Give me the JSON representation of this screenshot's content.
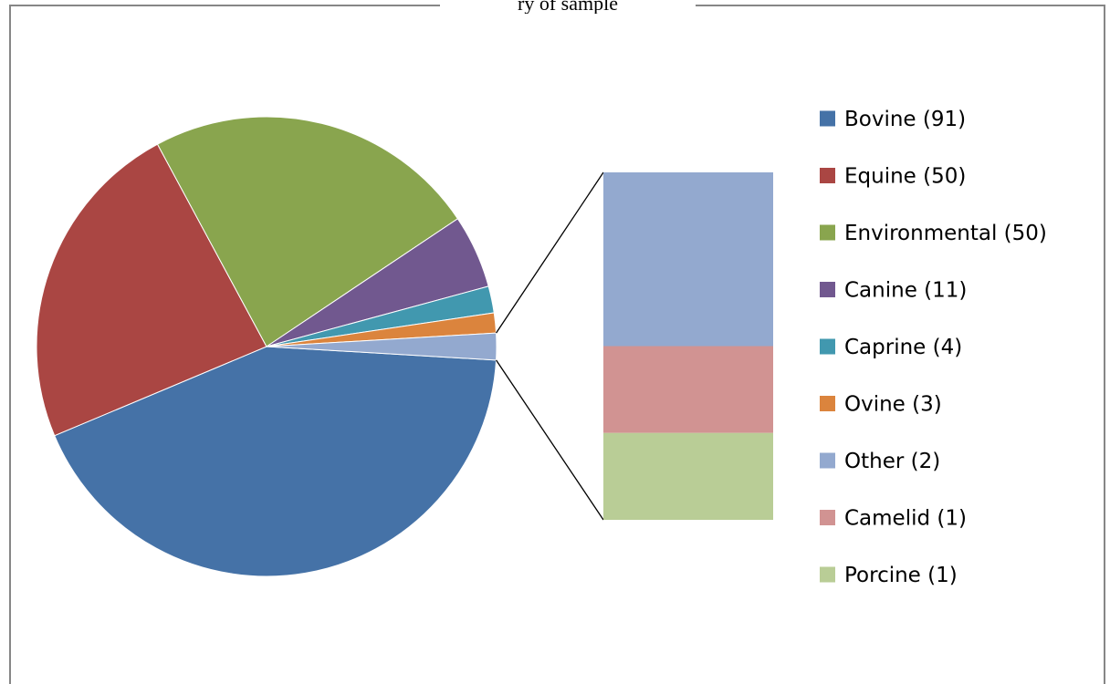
{
  "caption": "ry of sample",
  "chart_data": {
    "type": "pie",
    "subtype": "bar-of-pie",
    "title": "",
    "slices": [
      {
        "label": "Bovine (91)",
        "name": "Bovine",
        "value": 91,
        "color": "#4572A7"
      },
      {
        "label": "Equine (50)",
        "name": "Equine",
        "value": 50,
        "color": "#AA4643"
      },
      {
        "label": "Environmental (50)",
        "name": "Environmental",
        "value": 50,
        "color": "#89A54E"
      },
      {
        "label": "Canine (11)",
        "name": "Canine",
        "value": 11,
        "color": "#71588F"
      },
      {
        "label": "Caprine (4)",
        "name": "Caprine",
        "value": 4,
        "color": "#4198AF"
      },
      {
        "label": "Ovine (3)",
        "name": "Ovine",
        "value": 3,
        "color": "#DB843D"
      }
    ],
    "secondary_bar": [
      {
        "label": "Other (2)",
        "name": "Other",
        "value": 2,
        "color": "#93A9CF"
      },
      {
        "label": "Camelid (1)",
        "name": "Camelid",
        "value": 1,
        "color": "#D19392"
      },
      {
        "label": "Porcine (1)",
        "name": "Porcine",
        "value": 1,
        "color": "#B9CD96"
      }
    ],
    "legend_position": "right"
  }
}
